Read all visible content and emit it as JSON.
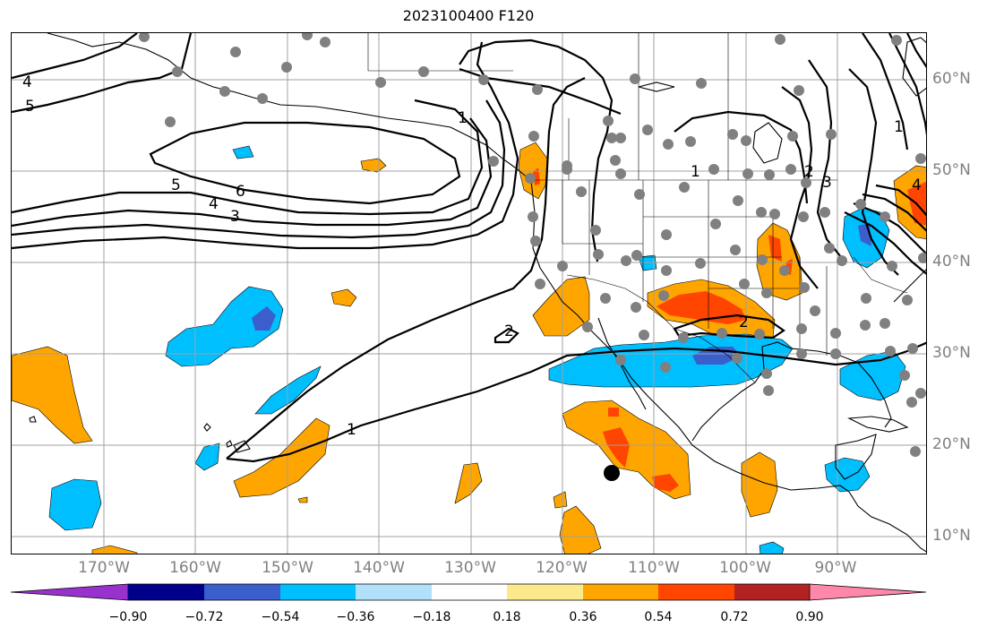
{
  "title": "2023100400 F120",
  "axes": {
    "lon_labels": [
      "170°W",
      "160°W",
      "150°W",
      "140°W",
      "130°W",
      "120°W",
      "110°W",
      "100°W",
      "90°W"
    ],
    "lat_labels": [
      "60°N",
      "50°N",
      "40°N",
      "30°N",
      "20°N",
      "10°N"
    ]
  },
  "colorbar": {
    "ticks": [
      "−0.90",
      "−0.72",
      "−0.54",
      "−0.36",
      "−0.18",
      "0.18",
      "0.36",
      "0.54",
      "0.72",
      "0.90"
    ],
    "colors": [
      "#9932cc",
      "#00008b",
      "#3a5fcd",
      "#00bfff",
      "#b0e0fa",
      "#ffffff",
      "#fbe98b",
      "#ffa500",
      "#ff4500",
      "#b22222",
      "#ff88aa"
    ]
  },
  "contour_labels": [
    "4",
    "5",
    "5",
    "6",
    "4",
    "3",
    "1",
    "2",
    "3",
    "4",
    "2",
    "2",
    "1",
    "1",
    "1"
  ],
  "colors": {
    "station": "#808080",
    "grid": "#a0a0a0",
    "contour": "#000000"
  }
}
